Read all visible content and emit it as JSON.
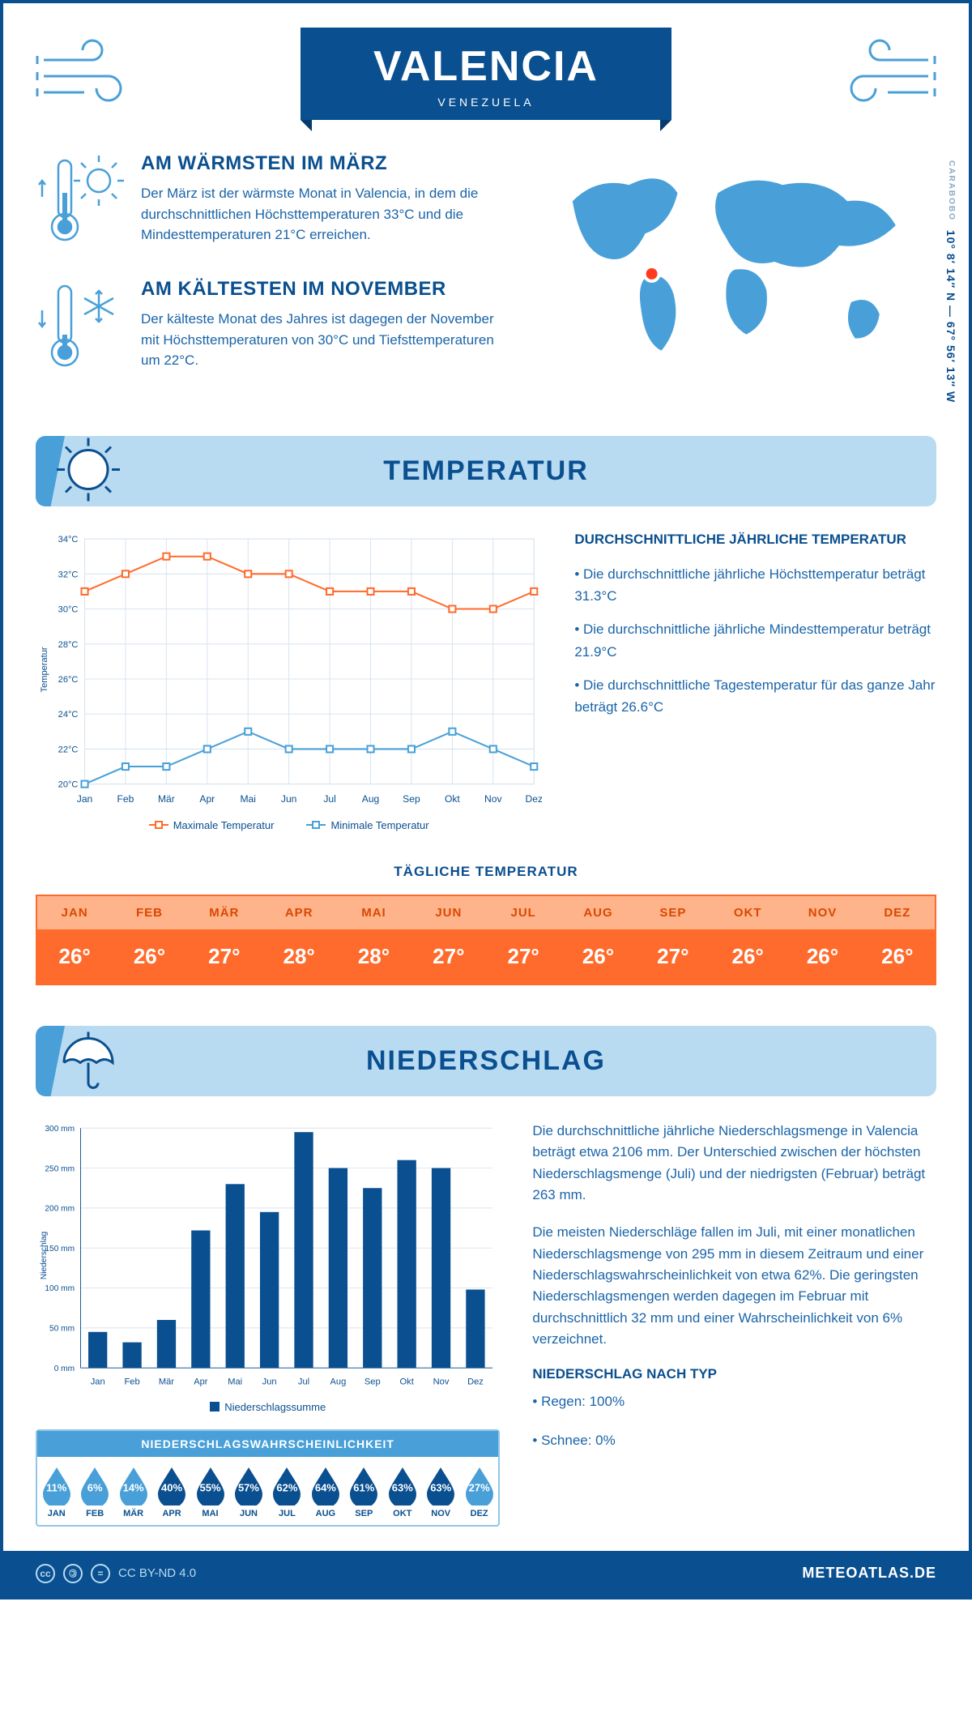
{
  "colors": {
    "primary": "#0a4f8f",
    "accent": "#49a0d8",
    "light": "#b8dbf2",
    "orange": "#ff6b2c",
    "orange_light": "#ffb38a",
    "grid": "#d8e4ef"
  },
  "header": {
    "city": "VALENCIA",
    "country": "VENEZUELA"
  },
  "intro": {
    "warm": {
      "title": "AM WÄRMSTEN IM MÄRZ",
      "text": "Der März ist der wärmste Monat in Valencia, in dem die durchschnittlichen Höchsttemperaturen 33°C und die Mindesttemperaturen 21°C erreichen."
    },
    "cold": {
      "title": "AM KÄLTESTEN IM NOVEMBER",
      "text": "Der kälteste Monat des Jahres ist dagegen der November mit Höchsttemperaturen von 30°C und Tiefsttemperaturen um 22°C."
    },
    "region": "CARABOBO",
    "coords": "10° 8′ 14″ N — 67° 56′ 13″ W"
  },
  "months": [
    "Jan",
    "Feb",
    "Mär",
    "Apr",
    "Mai",
    "Jun",
    "Jul",
    "Aug",
    "Sep",
    "Okt",
    "Nov",
    "Dez"
  ],
  "months_upper": [
    "JAN",
    "FEB",
    "MÄR",
    "APR",
    "MAI",
    "JUN",
    "JUL",
    "AUG",
    "SEP",
    "OKT",
    "NOV",
    "DEZ"
  ],
  "temperature": {
    "section_title": "TEMPERATUR",
    "chart": {
      "type": "line",
      "ylabel": "Temperatur",
      "ylim": [
        20,
        34
      ],
      "ytick_step": 2,
      "yticks": [
        "20°C",
        "22°C",
        "24°C",
        "26°C",
        "28°C",
        "30°C",
        "32°C",
        "34°C"
      ],
      "max_series": {
        "label": "Maximale Temperatur",
        "color": "#ff6b2c",
        "values": [
          31,
          32,
          33,
          33,
          32,
          32,
          31,
          31,
          31,
          30,
          30,
          31
        ]
      },
      "min_series": {
        "label": "Minimale Temperatur",
        "color": "#49a0d8",
        "values": [
          20,
          21,
          21,
          22,
          23,
          22,
          22,
          22,
          22,
          23,
          22,
          21
        ]
      },
      "marker_size": 4,
      "line_width": 2,
      "background": "#ffffff",
      "grid_color": "#d8e4ef"
    },
    "summary_title": "DURCHSCHNITTLICHE JÄHRLICHE TEMPERATUR",
    "bullets": [
      "• Die durchschnittliche jährliche Höchsttemperatur beträgt 31.3°C",
      "• Die durchschnittliche jährliche Mindesttemperatur beträgt 21.9°C",
      "• Die durchschnittliche Tagestemperatur für das ganze Jahr beträgt 26.6°C"
    ],
    "daily_title": "TÄGLICHE TEMPERATUR",
    "daily": [
      "26°",
      "26°",
      "27°",
      "28°",
      "28°",
      "27°",
      "27°",
      "26°",
      "27°",
      "26°",
      "26°",
      "26°"
    ]
  },
  "precip": {
    "section_title": "NIEDERSCHLAG",
    "chart": {
      "type": "bar",
      "ylabel": "Niederschlag",
      "ylim": [
        0,
        300
      ],
      "ytick_step": 50,
      "yticks": [
        "0 mm",
        "50 mm",
        "100 mm",
        "150 mm",
        "200 mm",
        "250 mm",
        "300 mm"
      ],
      "values": [
        45,
        32,
        60,
        172,
        230,
        195,
        295,
        250,
        225,
        260,
        250,
        98
      ],
      "bar_color": "#0a4f8f",
      "bar_width": 0.55,
      "legend": "Niederschlagssumme",
      "grid_color": "#d8e4ef"
    },
    "para1": "Die durchschnittliche jährliche Niederschlagsmenge in Valencia beträgt etwa 2106 mm. Der Unterschied zwischen der höchsten Niederschlagsmenge (Juli) und der niedrigsten (Februar) beträgt 263 mm.",
    "para2": "Die meisten Niederschläge fallen im Juli, mit einer monatlichen Niederschlagsmenge von 295 mm in diesem Zeitraum und einer Niederschlagswahrscheinlichkeit von etwa 62%. Die geringsten Niederschlagsmengen werden dagegen im Februar mit durchschnittlich 32 mm und einer Wahrscheinlichkeit von 6% verzeichnet.",
    "type_title": "NIEDERSCHLAG NACH TYP",
    "type_bullets": [
      "• Regen: 100%",
      "• Schnee: 0%"
    ],
    "prob_title": "NIEDERSCHLAGSWAHRSCHEINLICHKEIT",
    "prob": [
      11,
      6,
      14,
      40,
      55,
      57,
      62,
      64,
      61,
      63,
      63,
      27
    ],
    "prob_color_low": "#49a0d8",
    "prob_color_high": "#0a4f8f",
    "prob_threshold": 30
  },
  "footer": {
    "license": "CC BY-ND 4.0",
    "brand": "METEOATLAS.DE"
  }
}
